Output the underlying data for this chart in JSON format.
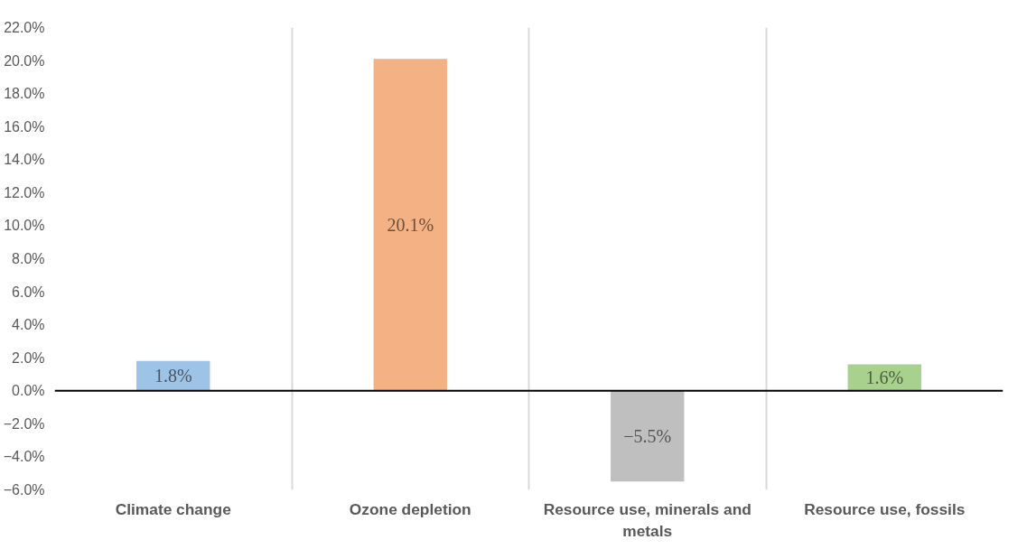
{
  "chart_data": {
    "type": "bar",
    "categories": [
      "Climate change",
      "Ozone depletion",
      "Resource use, minerals and metals",
      "Resource use, fossils"
    ],
    "values": [
      1.8,
      20.1,
      -5.5,
      1.6
    ],
    "colors": [
      "#9dc3e6",
      "#f4b183",
      "#bfbfbf",
      "#a9d18e"
    ],
    "value_labels": [
      "1.8%",
      "20.1%",
      "−5.5%",
      "1.6%"
    ],
    "ylim": [
      -6,
      22
    ],
    "yticks": [
      {
        "value": -6,
        "label": "−6.0%"
      },
      {
        "value": -4,
        "label": "−4.0%"
      },
      {
        "value": -2,
        "label": "−2.0%"
      },
      {
        "value": 0,
        "label": "0.0%"
      },
      {
        "value": 2,
        "label": "2.0%"
      },
      {
        "value": 4,
        "label": "4.0%"
      },
      {
        "value": 6,
        "label": "6.0%"
      },
      {
        "value": 8,
        "label": "8.0%"
      },
      {
        "value": 10,
        "label": "10.0%"
      },
      {
        "value": 12,
        "label": "12.0%"
      },
      {
        "value": 14,
        "label": "14.0%"
      },
      {
        "value": 16,
        "label": "16.0%"
      },
      {
        "value": 18,
        "label": "18.0%"
      },
      {
        "value": 20,
        "label": "20.0%"
      },
      {
        "value": 22,
        "label": "22.0%"
      }
    ],
    "grid": "x"
  }
}
